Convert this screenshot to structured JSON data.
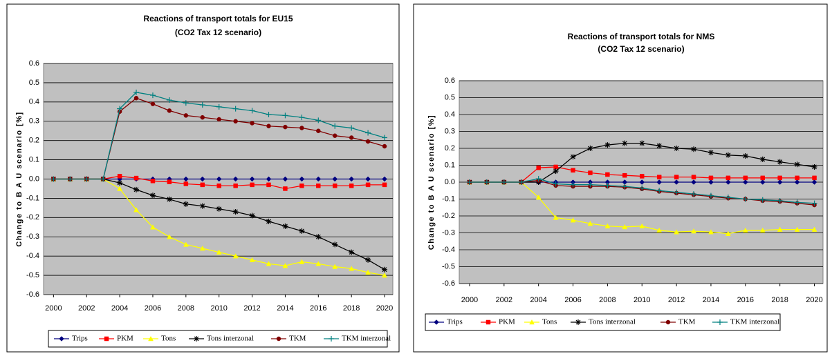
{
  "chart_data": [
    {
      "type": "line",
      "title": "Reactions of transport totals for EU15",
      "subtitle": "(CO2 Tax 12 scenario)",
      "y_label": "Change to B A U scenario [%]",
      "x": [
        2000,
        2001,
        2002,
        2003,
        2004,
        2005,
        2006,
        2007,
        2008,
        2009,
        2010,
        2011,
        2012,
        2013,
        2014,
        2015,
        2016,
        2017,
        2018,
        2019,
        2020
      ],
      "xlim": [
        1999.4,
        2020.5
      ],
      "xticks": [
        2000,
        2002,
        2004,
        2006,
        2008,
        2010,
        2012,
        2014,
        2016,
        2018,
        2020
      ],
      "ylim": [
        -0.6,
        0.6
      ],
      "yticks": [
        -0.6,
        -0.5,
        -0.4,
        -0.3,
        -0.2,
        -0.1,
        {
          "value": 0,
          "label": "0.0"
        },
        0.1,
        0.2,
        0.3,
        0.4,
        0.5,
        0.6
      ],
      "grid": true,
      "series": [
        {
          "name": "Trips",
          "color": "#000080",
          "marker": "diamond",
          "values": [
            0,
            0,
            0,
            0,
            0,
            0,
            0,
            0,
            0,
            0,
            0,
            0,
            0,
            0,
            0,
            0,
            0,
            0,
            0,
            0,
            0
          ]
        },
        {
          "name": "PKM",
          "color": "#ff0000",
          "marker": "square",
          "values": [
            0,
            0,
            0,
            0,
            0.015,
            0.005,
            -0.01,
            -0.015,
            -0.025,
            -0.03,
            -0.035,
            -0.035,
            -0.03,
            -0.03,
            -0.05,
            -0.035,
            -0.035,
            -0.035,
            -0.035,
            -0.03,
            -0.03
          ]
        },
        {
          "name": "Tons",
          "color": "#ffff00",
          "marker": "triangle",
          "values": [
            0,
            0,
            0,
            0,
            -0.05,
            -0.16,
            -0.25,
            -0.3,
            -0.34,
            -0.36,
            -0.38,
            -0.4,
            -0.42,
            -0.44,
            -0.45,
            -0.43,
            -0.44,
            -0.455,
            -0.465,
            -0.485,
            -0.5
          ]
        },
        {
          "name": "Tons interzonal",
          "color": "#000000",
          "marker": "asterisk",
          "values": [
            0,
            0,
            0,
            0,
            -0.02,
            -0.055,
            -0.085,
            -0.105,
            -0.13,
            -0.14,
            -0.155,
            -0.17,
            -0.19,
            -0.22,
            -0.245,
            -0.27,
            -0.3,
            -0.34,
            -0.38,
            -0.42,
            -0.47
          ]
        },
        {
          "name": "TKM",
          "color": "#800000",
          "marker": "circle",
          "values": [
            0,
            0,
            0,
            0,
            0.35,
            0.42,
            0.39,
            0.355,
            0.33,
            0.32,
            0.31,
            0.3,
            0.29,
            0.275,
            0.27,
            0.265,
            0.25,
            0.225,
            0.215,
            0.195,
            0.17
          ]
        },
        {
          "name": "TKM interzonal",
          "color": "#008080",
          "marker": "plus",
          "values": [
            0,
            0,
            0,
            0,
            0.365,
            0.45,
            0.435,
            0.41,
            0.395,
            0.385,
            0.375,
            0.365,
            0.355,
            0.335,
            0.33,
            0.32,
            0.305,
            0.275,
            0.265,
            0.24,
            0.215
          ]
        }
      ]
    },
    {
      "type": "line",
      "title": "Reactions of transport totals for NMS",
      "subtitle": "(CO2 Tax 12 scenario)",
      "y_label": "Change to B A U scenario [%]",
      "x": [
        2000,
        2001,
        2002,
        2003,
        2004,
        2005,
        2006,
        2007,
        2008,
        2009,
        2010,
        2011,
        2012,
        2013,
        2014,
        2015,
        2016,
        2017,
        2018,
        2019,
        2020
      ],
      "xlim": [
        1999.4,
        2020.5
      ],
      "xticks": [
        2000,
        2002,
        2004,
        2006,
        2008,
        2010,
        2012,
        2014,
        2016,
        2018,
        2020
      ],
      "ylim": [
        -0.6,
        0.6
      ],
      "yticks": [
        -0.6,
        -0.5,
        -0.4,
        -0.3,
        -0.2,
        -0.1,
        {
          "value": 0,
          "label": "0.0"
        },
        0.1,
        0.2,
        0.3,
        0.4,
        0.5,
        0.6
      ],
      "grid": true,
      "series": [
        {
          "name": "Trips",
          "color": "#000080",
          "marker": "diamond",
          "values": [
            0,
            0,
            0,
            0,
            0,
            0,
            0,
            0,
            0,
            0,
            0,
            0,
            0,
            0,
            0,
            0,
            0,
            0,
            0,
            0,
            0
          ]
        },
        {
          "name": "PKM",
          "color": "#ff0000",
          "marker": "square",
          "values": [
            0,
            0,
            0,
            0,
            0.085,
            0.09,
            0.07,
            0.055,
            0.045,
            0.04,
            0.035,
            0.03,
            0.03,
            0.03,
            0.025,
            0.025,
            0.025,
            0.025,
            0.025,
            0.025,
            0.025
          ]
        },
        {
          "name": "Tons",
          "color": "#ffff00",
          "marker": "triangle",
          "values": [
            0,
            0,
            0,
            0,
            -0.09,
            -0.21,
            -0.225,
            -0.245,
            -0.26,
            -0.265,
            -0.26,
            -0.285,
            -0.295,
            -0.29,
            -0.295,
            -0.305,
            -0.285,
            -0.285,
            -0.28,
            -0.28,
            -0.28
          ]
        },
        {
          "name": "Tons interzonal",
          "color": "#000000",
          "marker": "asterisk",
          "values": [
            0,
            0,
            0,
            0,
            0,
            0.065,
            0.15,
            0.2,
            0.22,
            0.23,
            0.23,
            0.215,
            0.2,
            0.195,
            0.175,
            0.16,
            0.155,
            0.135,
            0.12,
            0.105,
            0.09
          ]
        },
        {
          "name": "TKM",
          "color": "#800000",
          "marker": "circle",
          "values": [
            0,
            0,
            0,
            0,
            0.01,
            -0.02,
            -0.025,
            -0.025,
            -0.025,
            -0.03,
            -0.04,
            -0.055,
            -0.065,
            -0.075,
            -0.085,
            -0.095,
            -0.1,
            -0.11,
            -0.115,
            -0.125,
            -0.135
          ]
        },
        {
          "name": "TKM interzonal",
          "color": "#008080",
          "marker": "plus",
          "values": [
            0,
            0,
            0,
            0,
            0.02,
            -0.01,
            -0.015,
            -0.015,
            -0.02,
            -0.025,
            -0.035,
            -0.05,
            -0.06,
            -0.07,
            -0.08,
            -0.09,
            -0.1,
            -0.105,
            -0.11,
            -0.12,
            -0.125
          ]
        }
      ]
    }
  ]
}
